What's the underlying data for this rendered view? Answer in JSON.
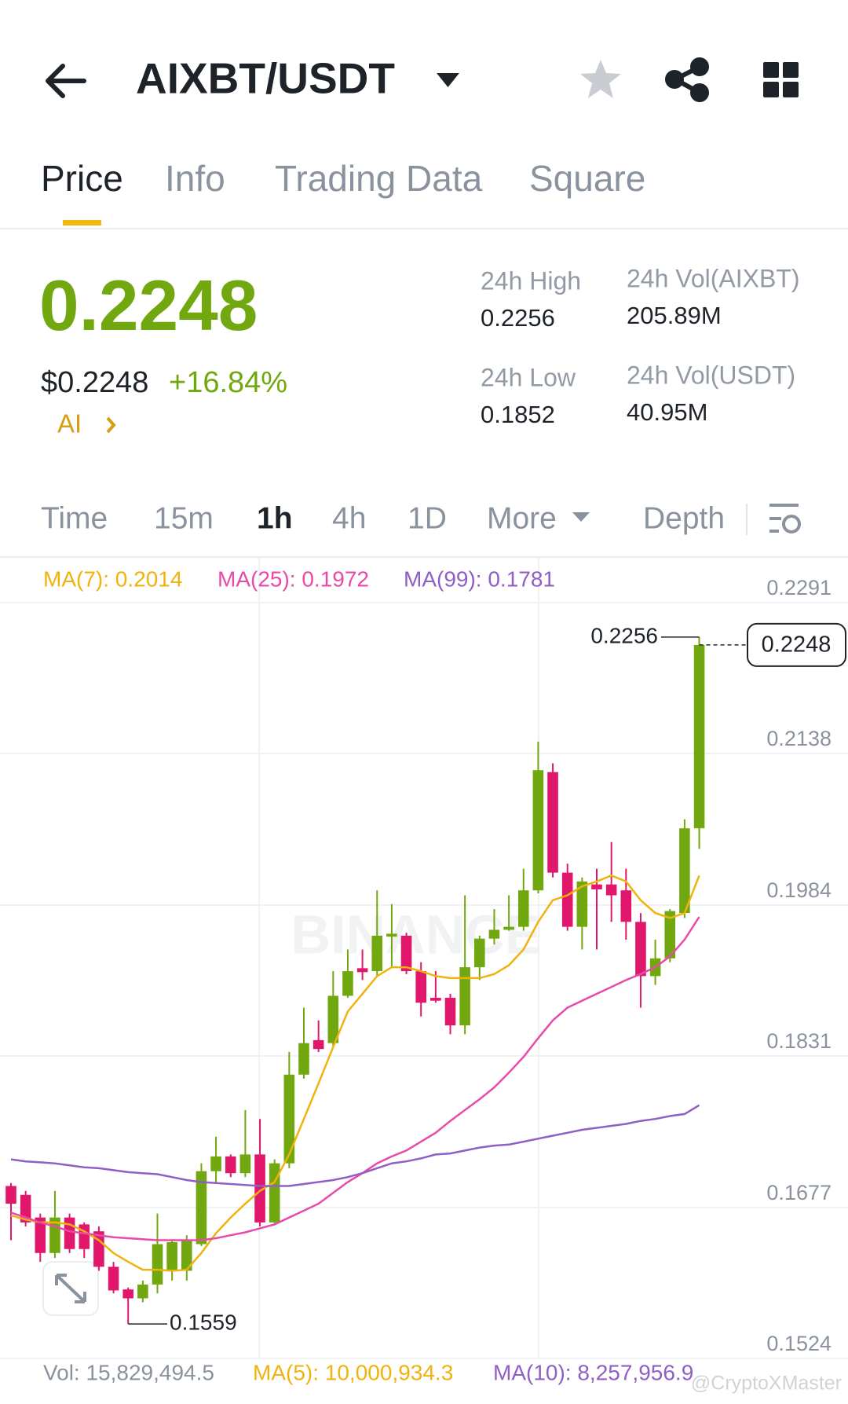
{
  "header": {
    "title": "AIXBT/USDT"
  },
  "tabs": [
    "Price",
    "Info",
    "Trading Data",
    "Square"
  ],
  "price": {
    "last": "0.2248",
    "usd": "$0.2248",
    "change": "+16.84%",
    "tag": "AI"
  },
  "stats": [
    {
      "label": "24h High",
      "value": "0.2256"
    },
    {
      "label": "24h Vol(AIXBT)",
      "value": "205.89M"
    },
    {
      "label": "24h Low",
      "value": "0.1852"
    },
    {
      "label": "24h Vol(USDT)",
      "value": "40.95M"
    }
  ],
  "intervals": [
    "Time",
    "15m",
    "1h",
    "4h",
    "1D",
    "More",
    "Depth"
  ],
  "chart_data": {
    "type": "candlestick",
    "open": [
      0.1699,
      0.169,
      0.1667,
      0.1631,
      0.1667,
      0.166,
      0.1653,
      0.1617,
      0.1594,
      0.1585,
      0.1599,
      0.1614,
      0.1613,
      0.164,
      0.1714,
      0.1729,
      0.1712,
      0.1731,
      0.1662,
      0.1722,
      0.1812,
      0.1847,
      0.1844,
      0.1892,
      0.192,
      0.1917,
      0.1952,
      0.1953,
      0.1917,
      0.189,
      0.189,
      0.1862,
      0.1921,
      0.195,
      0.1959,
      0.1962,
      0.1999,
      0.2119,
      0.2017,
      0.1962,
      0.2005,
      0.2005,
      0.1999,
      0.1967,
      0.1912,
      0.193,
      0.1976,
      0.2062
    ],
    "high": [
      0.1702,
      0.1694,
      0.1671,
      0.1694,
      0.1671,
      0.1662,
      0.1658,
      0.1622,
      0.1596,
      0.1603,
      0.1671,
      0.1644,
      0.1649,
      0.1722,
      0.1749,
      0.1731,
      0.1776,
      0.1767,
      0.1726,
      0.1835,
      0.188,
      0.1867,
      0.1917,
      0.1939,
      0.1939,
      0.1999,
      0.1985,
      0.1956,
      0.1926,
      0.1917,
      0.1894,
      0.1994,
      0.1953,
      0.198,
      0.1994,
      0.2021,
      0.215,
      0.2128,
      0.2026,
      0.2012,
      0.2021,
      0.2048,
      0.2021,
      0.1976,
      0.1949,
      0.198,
      0.2071,
      0.2256
    ],
    "low": [
      0.1644,
      0.1658,
      0.1622,
      0.1626,
      0.1631,
      0.1626,
      0.1613,
      0.159,
      0.1559,
      0.1581,
      0.159,
      0.1603,
      0.1603,
      0.1638,
      0.1703,
      0.1708,
      0.1708,
      0.1658,
      0.166,
      0.1717,
      0.1808,
      0.1835,
      0.184,
      0.189,
      0.1908,
      0.1912,
      0.1921,
      0.1914,
      0.1871,
      0.1885,
      0.1853,
      0.1853,
      0.1908,
      0.1944,
      0.1958,
      0.1958,
      0.1996,
      0.2012,
      0.1958,
      0.1939,
      0.1939,
      0.1967,
      0.1949,
      0.188,
      0.1903,
      0.1926,
      0.1971,
      0.2041
    ],
    "close": [
      0.1681,
      0.1662,
      0.1631,
      0.1667,
      0.1635,
      0.1635,
      0.1617,
      0.1593,
      0.1585,
      0.1599,
      0.164,
      0.1642,
      0.1644,
      0.1714,
      0.1729,
      0.1712,
      0.1731,
      0.1662,
      0.1722,
      0.1812,
      0.1844,
      0.1838,
      0.1892,
      0.1917,
      0.1916,
      0.1953,
      0.1955,
      0.1917,
      0.1885,
      0.1887,
      0.1862,
      0.1921,
      0.195,
      0.1959,
      0.1962,
      0.1999,
      0.2121,
      0.2017,
      0.1962,
      0.2008,
      0.2,
      0.1994,
      0.1967,
      0.1912,
      0.193,
      0.1978,
      0.2062,
      0.2248
    ],
    "up_color": "#72a80f",
    "down_color": "#e0176b",
    "series": [
      {
        "name": "MA(7): 0.2014",
        "color": "#efb30e",
        "values": [
          0.1669,
          0.1665,
          0.1662,
          0.1662,
          0.166,
          0.1653,
          0.1644,
          0.1631,
          0.1622,
          0.1614,
          0.1614,
          0.1613,
          0.1614,
          0.1631,
          0.1651,
          0.1667,
          0.1681,
          0.1694,
          0.1703,
          0.1731,
          0.1767,
          0.1803,
          0.184,
          0.1876,
          0.1894,
          0.1912,
          0.1921,
          0.1921,
          0.1917,
          0.1912,
          0.191,
          0.191,
          0.191,
          0.1914,
          0.1923,
          0.1939,
          0.1967,
          0.1989,
          0.1994,
          0.2003,
          0.2008,
          0.2014,
          0.2008,
          0.1989,
          0.1976,
          0.1971,
          0.1976,
          0.2014
        ]
      },
      {
        "name": "MA(25): 0.1972",
        "color": "#e84aa8",
        "values": [
          0.1672,
          0.1667,
          0.1662,
          0.1658,
          0.1653,
          0.1651,
          0.1649,
          0.1647,
          0.1646,
          0.1645,
          0.1644,
          0.1644,
          0.1644,
          0.1644,
          0.1646,
          0.1649,
          0.1652,
          0.1656,
          0.166,
          0.1667,
          0.1674,
          0.1681,
          0.1692,
          0.1703,
          0.1712,
          0.1722,
          0.1729,
          0.1735,
          0.1744,
          0.1753,
          0.1765,
          0.1776,
          0.1787,
          0.1799,
          0.1814,
          0.183,
          0.1849,
          0.1867,
          0.188,
          0.1887,
          0.1894,
          0.1901,
          0.1908,
          0.1914,
          0.1921,
          0.1932,
          0.1949,
          0.1972
        ]
      },
      {
        "name": "MA(99): 0.1781",
        "color": "#8f5fc6",
        "values": [
          0.1726,
          0.1724,
          0.1723,
          0.1722,
          0.172,
          0.1718,
          0.1717,
          0.1715,
          0.1713,
          0.1712,
          0.1711,
          0.1708,
          0.1705,
          0.1703,
          0.1702,
          0.1701,
          0.17,
          0.1699,
          0.1699,
          0.1699,
          0.1701,
          0.1703,
          0.1705,
          0.1708,
          0.1712,
          0.1717,
          0.1722,
          0.1724,
          0.1727,
          0.1731,
          0.1732,
          0.1735,
          0.1738,
          0.174,
          0.1741,
          0.1744,
          0.1747,
          0.175,
          0.1753,
          0.1756,
          0.1758,
          0.176,
          0.1762,
          0.1765,
          0.1767,
          0.177,
          0.1772,
          0.1781
        ]
      }
    ],
    "ylim": [
      0.1524,
      0.2291
    ],
    "yticks": [
      0.1524,
      0.1677,
      0.1831,
      0.1984,
      0.2138,
      0.2291
    ],
    "grid": true,
    "annotations": {
      "high": 0.2256,
      "low": 0.1559,
      "last": 0.2248
    },
    "watermark": "BINANCE"
  },
  "volume_legend": [
    {
      "text": "Vol: 15,829,494.5",
      "color": "#8a929e"
    },
    {
      "text": "MA(5): 10,000,934.3",
      "color": "#efb30e"
    },
    {
      "text": "MA(10): 8,257,956.9",
      "color": "#8f5fc6"
    }
  ],
  "watermark": "@CryptoXMaster"
}
